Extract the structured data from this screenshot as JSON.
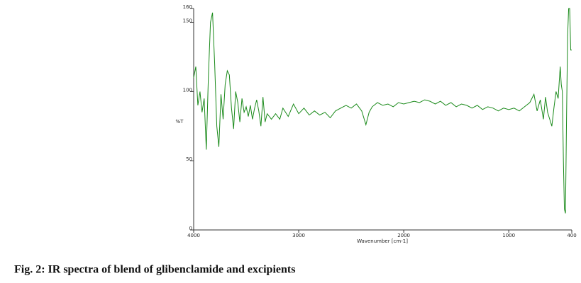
{
  "chart_data": {
    "type": "line",
    "caption": "Fig. 2: IR spectra of blend of glibenclamide and excipients",
    "x_label": "Wavenumber [cm-1]",
    "y_label": "%T",
    "color": "#1a8a1a",
    "xlim": [
      4000,
      400
    ],
    "ylim": [
      0,
      160
    ],
    "xticks": [
      4000,
      3000,
      2000,
      1000,
      400
    ],
    "yticks": [
      0,
      50,
      100,
      150,
      160
    ],
    "x": [
      4000,
      3980,
      3960,
      3940,
      3920,
      3900,
      3880,
      3860,
      3840,
      3820,
      3800,
      3780,
      3760,
      3740,
      3720,
      3700,
      3680,
      3660,
      3640,
      3620,
      3600,
      3580,
      3560,
      3540,
      3520,
      3500,
      3480,
      3460,
      3440,
      3420,
      3400,
      3380,
      3360,
      3340,
      3320,
      3300,
      3260,
      3220,
      3180,
      3150,
      3100,
      3050,
      3000,
      2950,
      2900,
      2850,
      2800,
      2750,
      2700,
      2650,
      2600,
      2550,
      2500,
      2450,
      2400,
      2360,
      2330,
      2300,
      2250,
      2200,
      2150,
      2100,
      2050,
      2000,
      1950,
      1900,
      1850,
      1800,
      1750,
      1700,
      1650,
      1600,
      1550,
      1500,
      1450,
      1400,
      1350,
      1300,
      1250,
      1200,
      1150,
      1100,
      1050,
      1000,
      950,
      900,
      850,
      800,
      760,
      730,
      700,
      670,
      650,
      630,
      610,
      590,
      570,
      550,
      530,
      510,
      500,
      490,
      480,
      470,
      460,
      450,
      440,
      430,
      420,
      410,
      400
    ],
    "values": [
      110,
      118,
      90,
      100,
      85,
      95,
      58,
      110,
      150,
      157,
      120,
      75,
      60,
      98,
      80,
      105,
      115,
      112,
      88,
      73,
      100,
      92,
      78,
      95,
      85,
      89,
      82,
      90,
      80,
      88,
      94,
      86,
      75,
      96,
      78,
      84,
      80,
      84,
      80,
      88,
      82,
      91,
      84,
      88,
      83,
      86,
      83,
      85,
      81,
      86,
      88,
      90,
      88,
      91,
      86,
      76,
      85,
      89,
      92,
      90,
      91,
      89,
      92,
      91,
      92,
      93,
      92,
      94,
      93,
      91,
      93,
      90,
      92,
      89,
      91,
      90,
      88,
      90,
      87,
      89,
      88,
      86,
      88,
      87,
      88,
      86,
      89,
      92,
      98,
      86,
      94,
      80,
      96,
      85,
      80,
      75,
      88,
      100,
      95,
      118,
      105,
      100,
      50,
      15,
      12,
      80,
      140,
      160,
      160,
      130,
      130
    ]
  }
}
